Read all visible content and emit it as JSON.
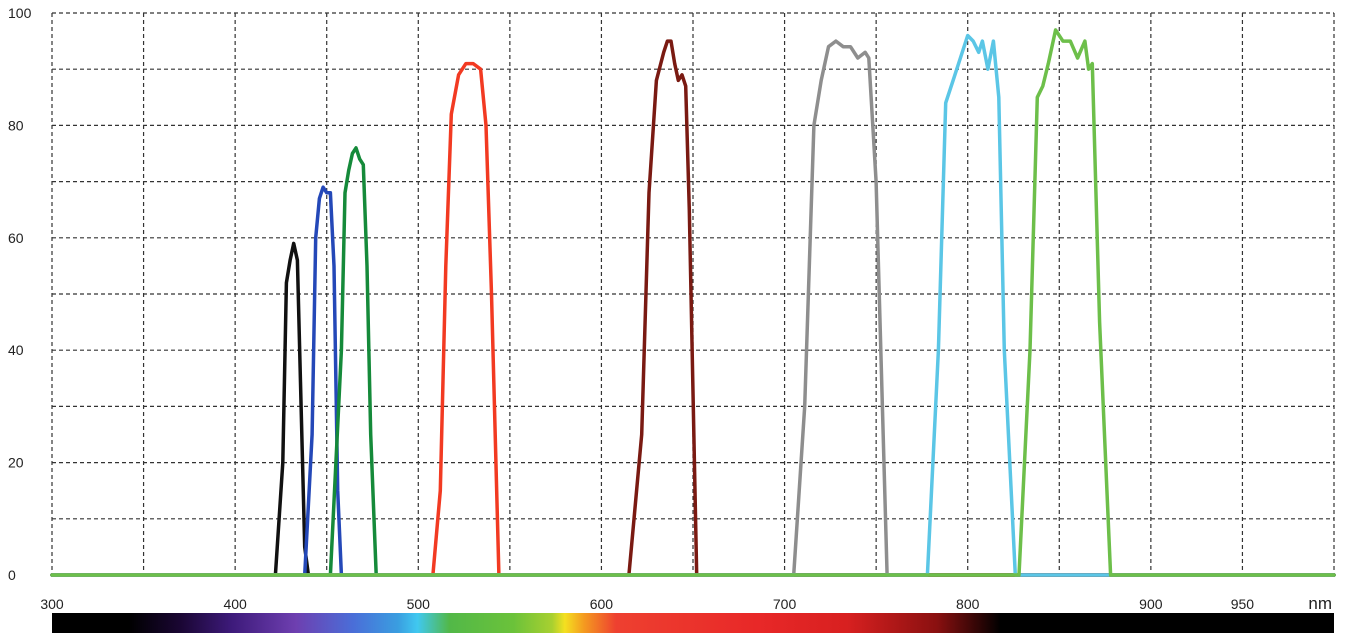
{
  "chart_data": {
    "type": "line",
    "title": "",
    "xlabel": "nm",
    "ylabel": "",
    "xlim": [
      300,
      1000
    ],
    "ylim": [
      0,
      100
    ],
    "grid": true,
    "legend": "none",
    "x_ticks": [
      {
        "value": 300,
        "label": "300"
      },
      {
        "value": 400,
        "label": "400"
      },
      {
        "value": 500,
        "label": "500"
      },
      {
        "value": 600,
        "label": "600"
      },
      {
        "value": 700,
        "label": "700"
      },
      {
        "value": 800,
        "label": "800"
      },
      {
        "value": 900,
        "label": "900"
      },
      {
        "value": 950,
        "label": "950"
      }
    ],
    "x_unit_label": "nm",
    "y_ticks": [
      {
        "value": 0,
        "label": "0"
      },
      {
        "value": 20,
        "label": "20"
      },
      {
        "value": 40,
        "label": "40"
      },
      {
        "value": 60,
        "label": "60"
      },
      {
        "value": 80,
        "label": "80"
      },
      {
        "value": 100,
        "label": "100"
      }
    ],
    "spectrum_bar": true,
    "series": [
      {
        "color": "#111111",
        "x": [
          300,
          422,
          426,
          428,
          430,
          432,
          434,
          436,
          438,
          440,
          1000
        ],
        "y": [
          0,
          0,
          20,
          52,
          56,
          59,
          56,
          30,
          5,
          0,
          0
        ]
      },
      {
        "color": "#2448b8",
        "x": [
          300,
          438,
          442,
          444,
          446,
          448,
          450,
          452,
          454,
          456,
          458,
          1000
        ],
        "y": [
          0,
          0,
          25,
          60,
          67,
          69,
          68,
          68,
          55,
          15,
          0,
          0
        ]
      },
      {
        "color": "#158a3a",
        "x": [
          300,
          452,
          458,
          460,
          462,
          464,
          466,
          468,
          470,
          472,
          474,
          477,
          1000
        ],
        "y": [
          0,
          0,
          40,
          68,
          72,
          75,
          76,
          74,
          73,
          55,
          25,
          0,
          0
        ]
      },
      {
        "color": "#f23a22",
        "x": [
          300,
          508,
          512,
          515,
          518,
          522,
          526,
          530,
          534,
          537,
          540,
          544,
          1000
        ],
        "y": [
          0,
          0,
          15,
          55,
          82,
          89,
          91,
          91,
          90,
          80,
          50,
          0,
          0
        ]
      },
      {
        "color": "#7a1a12",
        "x": [
          300,
          615,
          622,
          626,
          630,
          634,
          636,
          638,
          640,
          642,
          644,
          646,
          648,
          652,
          1000
        ],
        "y": [
          0,
          0,
          25,
          68,
          88,
          93,
          95,
          95,
          91,
          88,
          89,
          87,
          65,
          0,
          0
        ]
      },
      {
        "color": "#8e8e8e",
        "x": [
          300,
          705,
          711,
          716,
          720,
          724,
          728,
          732,
          736,
          740,
          744,
          746,
          750,
          756,
          1000
        ],
        "y": [
          0,
          0,
          30,
          80,
          88,
          94,
          95,
          94,
          94,
          92,
          93,
          92,
          70,
          0,
          0
        ]
      },
      {
        "color": "#5bc6e6",
        "x": [
          300,
          778,
          784,
          788,
          792,
          796,
          800,
          803,
          806,
          808,
          811,
          814,
          817,
          820,
          826,
          1000
        ],
        "y": [
          0,
          0,
          40,
          84,
          88,
          92,
          96,
          95,
          93,
          95,
          90,
          95,
          85,
          40,
          0,
          0
        ]
      },
      {
        "color": "#6dbf4a",
        "x": [
          300,
          828,
          834,
          838,
          841,
          844,
          848,
          852,
          856,
          860,
          864,
          866,
          868,
          872,
          878,
          1000
        ],
        "y": [
          0,
          0,
          40,
          85,
          87,
          91,
          97,
          95,
          95,
          92,
          95,
          90,
          91,
          45,
          0,
          0
        ]
      }
    ]
  }
}
